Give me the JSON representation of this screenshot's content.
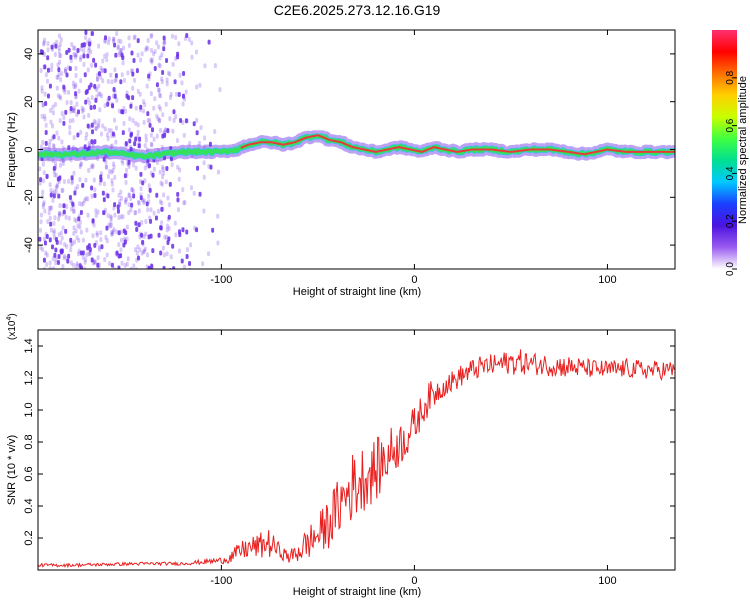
{
  "title": "C2E6.2025.273.12.16.G19",
  "colors": {
    "snr_line": "#e82020",
    "signal_core": "#e83a3a",
    "signal_edge": "#35e05a",
    "signal_halo": "#2fc6e0",
    "noise": "#6a2ee8"
  },
  "chart_data": [
    {
      "type": "heatmap",
      "name": "spectrogram",
      "xlabel": "Height of straight line (km)",
      "ylabel": "Frequency (Hz)",
      "xlim": [
        -195,
        135
      ],
      "ylim": [
        -50,
        50
      ],
      "xticks": [
        -100,
        0,
        100
      ],
      "yticks": [
        -40,
        -20,
        0,
        20,
        40
      ],
      "colorbar": {
        "label": "Normalized spectral amplitude",
        "range": [
          0,
          1
        ],
        "ticks": [
          "0.0",
          "0.2",
          "0.4",
          "0.6",
          "0.8"
        ],
        "tick_values": [
          0,
          0.2,
          0.4,
          0.6,
          0.8
        ],
        "colormap": [
          "#ffffff",
          "#9a5cf0",
          "#4b12e0",
          "#1a40ff",
          "#00c8ff",
          "#00e090",
          "#40ff40",
          "#c8ff00",
          "#ffd000",
          "#ff7000",
          "#ff0000",
          "#ff3070"
        ]
      },
      "doppler_trace_hz": {
        "x": [
          -195,
          -175,
          -160,
          -150,
          -140,
          -130,
          -120,
          -110,
          -100,
          -92,
          -86,
          -80,
          -74,
          -68,
          -62,
          -56,
          -50,
          -44,
          -38,
          -32,
          -26,
          -20,
          -14,
          -8,
          -2,
          4,
          10,
          16,
          22,
          30,
          40,
          50,
          60,
          70,
          80,
          88,
          94,
          100,
          110,
          120,
          135
        ],
        "y": [
          -2,
          -2,
          -1,
          -2,
          -3,
          -2,
          -1,
          -1,
          -1,
          0,
          2,
          3,
          3,
          2,
          3,
          5,
          6,
          4,
          3,
          1,
          0,
          -1,
          0,
          1,
          0,
          -1,
          1,
          0,
          -1,
          0,
          0,
          -1,
          0,
          0,
          -1,
          -2,
          -1,
          0,
          -1,
          -1,
          -1
        ]
      }
    },
    {
      "type": "line",
      "name": "snr",
      "xlabel": "Height of straight line (km)",
      "ylabel": "SNR (10 * v/v)",
      "scale_label": "(x10",
      "scale_exponent": "4",
      "scale_suffix": ")",
      "xlim": [
        -195,
        135
      ],
      "ylim": [
        0,
        1.5
      ],
      "xticks": [
        -100,
        0,
        100
      ],
      "yticks": [
        0.2,
        0.4,
        0.6,
        0.8,
        1.0,
        1.2,
        1.4
      ],
      "ytick_labels": [
        "0.2",
        "0.4",
        "0.6",
        "0.8",
        "1.0",
        "1.2",
        "1.4"
      ],
      "series": [
        {
          "name": "SNR",
          "x": [
            -195,
            -180,
            -160,
            -140,
            -120,
            -110,
            -100,
            -95,
            -90,
            -85,
            -80,
            -76,
            -72,
            -68,
            -64,
            -60,
            -56,
            -52,
            -48,
            -44,
            -40,
            -36,
            -32,
            -28,
            -24,
            -20,
            -16,
            -12,
            -8,
            -4,
            0,
            4,
            8,
            12,
            16,
            20,
            25,
            30,
            35,
            40,
            45,
            50,
            55,
            60,
            70,
            80,
            90,
            100,
            110,
            120,
            135
          ],
          "y": [
            0.03,
            0.03,
            0.035,
            0.04,
            0.04,
            0.05,
            0.06,
            0.08,
            0.12,
            0.14,
            0.15,
            0.17,
            0.14,
            0.1,
            0.08,
            0.12,
            0.16,
            0.2,
            0.24,
            0.3,
            0.38,
            0.46,
            0.52,
            0.56,
            0.6,
            0.62,
            0.68,
            0.74,
            0.78,
            0.84,
            0.9,
            1.0,
            1.08,
            1.12,
            1.16,
            1.18,
            1.22,
            1.25,
            1.27,
            1.28,
            1.29,
            1.3,
            1.3,
            1.29,
            1.28,
            1.27,
            1.26,
            1.25,
            1.26,
            1.25,
            1.25
          ],
          "noise": [
            0.01,
            0.01,
            0.01,
            0.01,
            0.01,
            0.015,
            0.02,
            0.04,
            0.06,
            0.07,
            0.08,
            0.1,
            0.06,
            0.04,
            0.05,
            0.08,
            0.1,
            0.12,
            0.14,
            0.16,
            0.18,
            0.2,
            0.22,
            0.22,
            0.2,
            0.2,
            0.18,
            0.16,
            0.14,
            0.14,
            0.12,
            0.1,
            0.1,
            0.08,
            0.07,
            0.07,
            0.07,
            0.07,
            0.07,
            0.07,
            0.07,
            0.08,
            0.08,
            0.07,
            0.07,
            0.07,
            0.06,
            0.06,
            0.06,
            0.06,
            0.06
          ]
        }
      ]
    }
  ]
}
